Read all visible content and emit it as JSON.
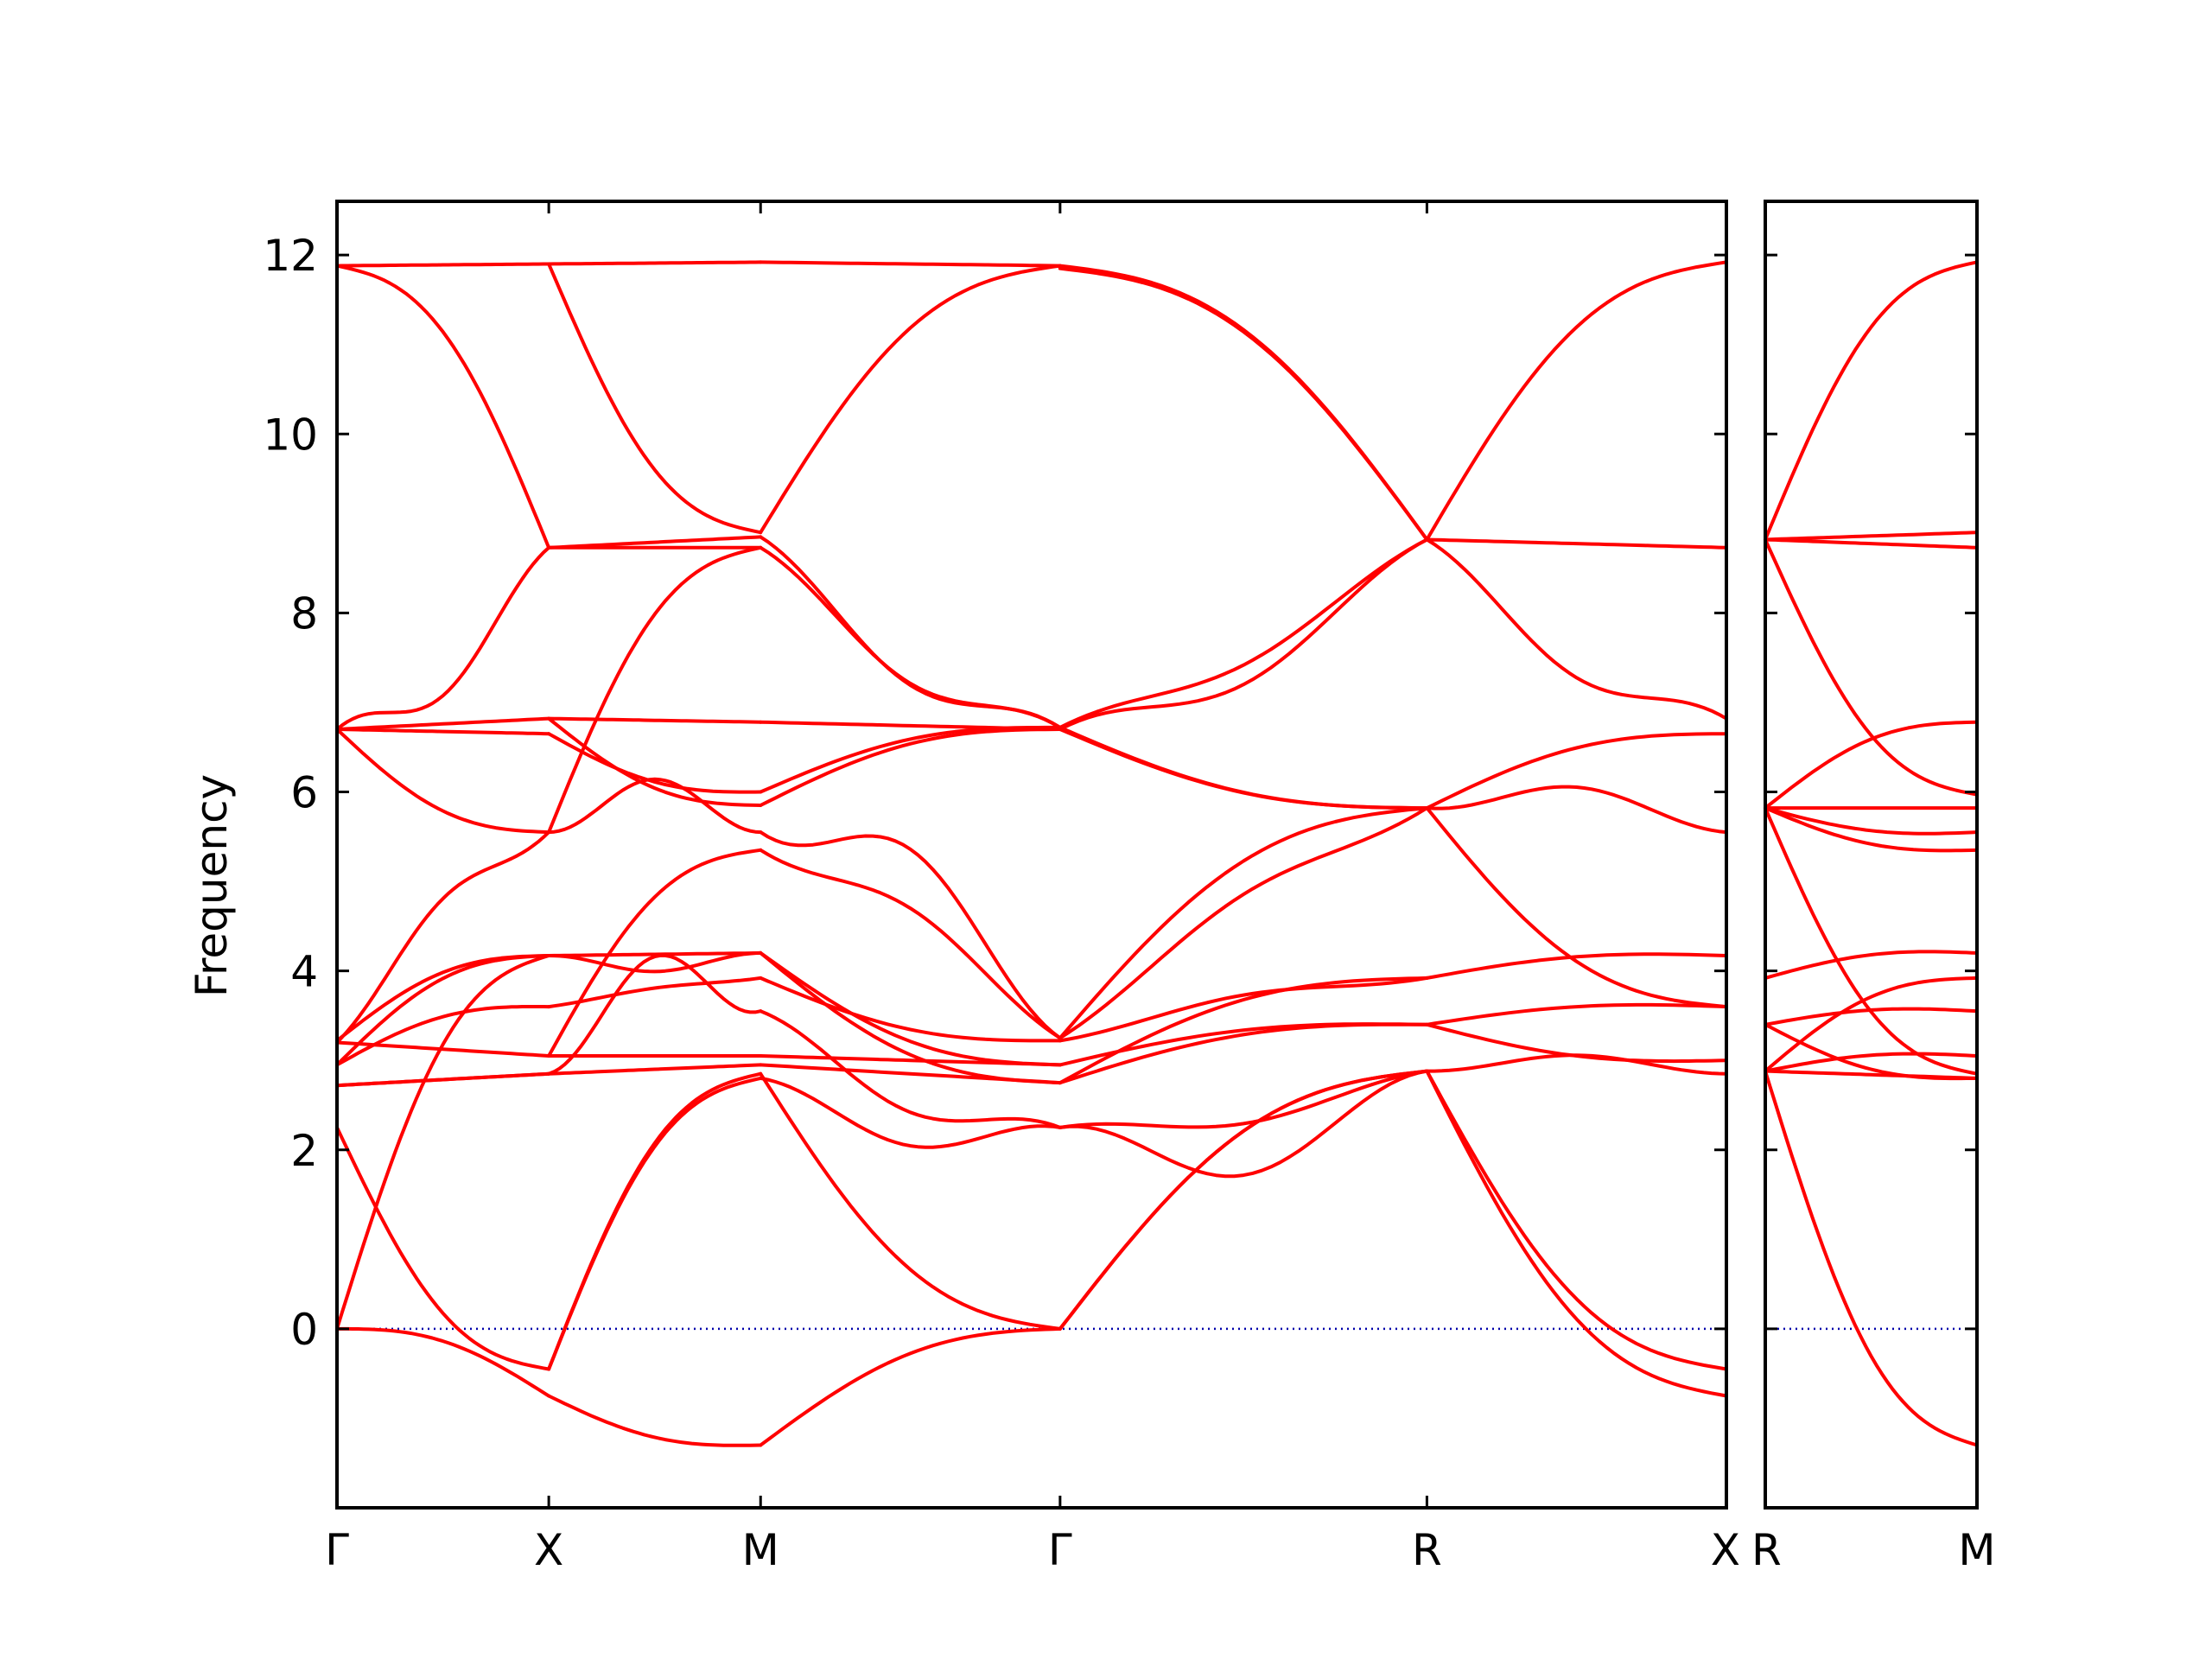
{
  "chart_data": {
    "type": "line",
    "ylabel": "Frequency",
    "ylim": [
      -2,
      12.6
    ],
    "yticks": [
      0,
      2,
      4,
      6,
      8,
      10,
      12
    ],
    "colors": {
      "bands": "#ff0000",
      "zero_line": "#0000aa",
      "frame": "#000000"
    },
    "zero_line": {
      "y": 0,
      "style": "dotted"
    },
    "panels": [
      {
        "segments": [
          {
            "from": "Γ",
            "to": "X",
            "length": 1.0
          },
          {
            "from": "X",
            "to": "M",
            "length": 1.0
          },
          {
            "from": "M",
            "to": "Γ",
            "length": 1.414
          },
          {
            "from": "Γ",
            "to": "R",
            "length": 1.732
          },
          {
            "from": "R",
            "to": "X",
            "length": 1.414
          }
        ],
        "xtick_labels": [
          "Γ",
          "X",
          "M",
          "Γ",
          "R",
          "X"
        ],
        "bands_per_segment": [
          [
            {
              "start": 11.88,
              "end": 11.9
            },
            {
              "start": 11.88,
              "end": 8.73,
              "shape": "arch"
            },
            {
              "start": 6.7,
              "end": 8.73,
              "shape": "dip",
              "min": 6.3
            },
            {
              "start": 6.7,
              "end": 6.82
            },
            {
              "start": 6.7,
              "end": 6.65
            },
            {
              "start": 6.7,
              "end": 5.55,
              "shape": "sag"
            },
            {
              "start": 3.2,
              "end": 5.55,
              "shape": "bump",
              "peak": 5.82
            },
            {
              "start": 3.22,
              "end": 4.17,
              "shape": "arch"
            },
            {
              "start": 3.2,
              "end": 3.05
            },
            {
              "start": 2.95,
              "end": 4.17,
              "shape": "arch"
            },
            {
              "start": 2.95,
              "end": 3.6,
              "shape": "arch"
            },
            {
              "start": 2.72,
              "end": 2.85
            },
            {
              "start": 2.72,
              "end": 2.85
            },
            {
              "start": 2.25,
              "end": -0.45,
              "shape": "sag"
            },
            {
              "start": 0.0,
              "end": 4.17,
              "shape": "arch"
            },
            {
              "start": 0.0,
              "end": -0.75,
              "shape": "arch"
            }
          ],
          [
            {
              "start": 11.9,
              "end": 11.92
            },
            {
              "start": 11.9,
              "end": 8.9,
              "shape": "sag"
            },
            {
              "start": 8.73,
              "end": 8.85
            },
            {
              "start": 8.73,
              "end": 8.73
            },
            {
              "start": 6.82,
              "end": 6.78
            },
            {
              "start": 6.65,
              "end": 6.0,
              "shape": "sag"
            },
            {
              "start": 6.82,
              "end": 5.85,
              "shape": "sag"
            },
            {
              "start": 5.55,
              "end": 5.55,
              "shape": "bump",
              "peak": 5.92
            },
            {
              "start": 5.55,
              "end": 8.73,
              "shape": "arch"
            },
            {
              "start": 4.17,
              "end": 4.2
            },
            {
              "start": 4.17,
              "end": 4.2,
              "shape": "dip",
              "min": 4.05
            },
            {
              "start": 3.6,
              "end": 3.92,
              "shape": "bump",
              "peak": 3.95
            },
            {
              "start": 3.05,
              "end": 5.35,
              "shape": "arch"
            },
            {
              "start": 3.05,
              "end": 3.05
            },
            {
              "start": 2.85,
              "end": 2.95
            },
            {
              "start": 2.85,
              "end": 3.55,
              "shape": "dip",
              "min": 3.45
            },
            {
              "start": -0.45,
              "end": 2.85,
              "shape": "arch"
            },
            {
              "start": -0.45,
              "end": 2.8,
              "shape": "arch"
            },
            {
              "start": -0.75,
              "end": -1.3,
              "shape": "sag"
            }
          ],
          [
            {
              "start": 11.92,
              "end": 11.88
            },
            {
              "start": 8.9,
              "end": 11.88,
              "shape": "arch"
            },
            {
              "start": 8.85,
              "end": 6.72,
              "shape": "dip",
              "min": 6.35
            },
            {
              "start": 8.73,
              "end": 6.72,
              "shape": "dip",
              "min": 6.4
            },
            {
              "start": 6.78,
              "end": 6.7
            },
            {
              "start": 6.0,
              "end": 6.72,
              "shape": "arch"
            },
            {
              "start": 5.85,
              "end": 6.7,
              "shape": "arch"
            },
            {
              "start": 5.55,
              "end": 3.25,
              "shape": "bump",
              "peak": 6.15
            },
            {
              "start": 5.35,
              "end": 3.25,
              "shape": "bump",
              "peak": 5.6
            },
            {
              "start": 4.2,
              "end": 2.75,
              "shape": "sag"
            },
            {
              "start": 4.2,
              "end": 2.95,
              "shape": "sag"
            },
            {
              "start": 3.92,
              "end": 3.22,
              "shape": "sag"
            },
            {
              "start": 3.55,
              "end": 2.25,
              "shape": "dip",
              "min": 1.95
            },
            {
              "start": 3.05,
              "end": 2.95
            },
            {
              "start": 2.95,
              "end": 2.75
            },
            {
              "start": 2.85,
              "end": 0.0,
              "shape": "sag"
            },
            {
              "start": 2.8,
              "end": 2.25,
              "shape": "dip",
              "min": 1.95
            },
            {
              "start": -1.3,
              "end": 0.0,
              "shape": "arch"
            }
          ],
          [
            {
              "start": 11.88,
              "end": 8.82,
              "shape": "arch"
            },
            {
              "start": 11.85,
              "end": 8.82,
              "shape": "arch"
            },
            {
              "start": 6.72,
              "end": 8.82,
              "shape": "dip",
              "min": 6.5
            },
            {
              "start": 6.7,
              "end": 8.82,
              "shape": "dip",
              "min": 6.35
            },
            {
              "start": 6.72,
              "end": 5.82,
              "shape": "sag"
            },
            {
              "start": 6.7,
              "end": 5.82,
              "shape": "sag"
            },
            {
              "start": 3.25,
              "end": 5.82,
              "shape": "bump",
              "peak": 6.02
            },
            {
              "start": 3.25,
              "end": 5.82,
              "shape": "arch"
            },
            {
              "start": 3.22,
              "end": 3.92,
              "shape": "bump",
              "peak": 4.02
            },
            {
              "start": 2.95,
              "end": 3.4,
              "shape": "arch"
            },
            {
              "start": 2.75,
              "end": 3.92,
              "shape": "arch"
            },
            {
              "start": 2.75,
              "end": 3.4,
              "shape": "arch"
            },
            {
              "start": 2.25,
              "end": 2.88,
              "shape": "dip",
              "min": 2.08
            },
            {
              "start": 2.25,
              "end": 2.88,
              "shape": "dip",
              "min": 1.72
            },
            {
              "start": 0.0,
              "end": 2.88,
              "shape": "arch"
            },
            {
              "start": 0.0,
              "end": 2.88,
              "shape": "arch"
            }
          ],
          [
            {
              "start": 8.82,
              "end": 8.73
            },
            {
              "start": 8.82,
              "end": 11.92,
              "shape": "arch"
            },
            {
              "start": 8.82,
              "end": 6.82,
              "shape": "dip",
              "min": 6.48
            },
            {
              "start": 5.82,
              "end": 6.65,
              "shape": "arch"
            },
            {
              "start": 5.82,
              "end": 5.55,
              "shape": "bump",
              "peak": 6.05
            },
            {
              "start": 5.82,
              "end": 3.6,
              "shape": "sag"
            },
            {
              "start": 3.92,
              "end": 4.17,
              "shape": "arch"
            },
            {
              "start": 3.4,
              "end": 3.6,
              "shape": "arch"
            },
            {
              "start": 3.4,
              "end": 3.0,
              "shape": "sag"
            },
            {
              "start": 2.88,
              "end": 2.85,
              "shape": "bump",
              "peak": 3.0
            },
            {
              "start": 2.88,
              "end": -0.45,
              "shape": "sag"
            },
            {
              "start": 2.88,
              "end": -0.75,
              "shape": "sag"
            }
          ]
        ]
      },
      {
        "segments": [
          {
            "from": "R",
            "to": "M",
            "length": 0.707
          }
        ],
        "xtick_labels": [
          "R",
          "M"
        ],
        "bands_per_segment": [
          [
            {
              "start": 8.82,
              "end": 11.92,
              "shape": "arch"
            },
            {
              "start": 8.82,
              "end": 8.9
            },
            {
              "start": 8.82,
              "end": 8.73
            },
            {
              "start": 8.82,
              "end": 5.97,
              "shape": "sag"
            },
            {
              "start": 5.82,
              "end": 6.78,
              "shape": "arch"
            },
            {
              "start": 5.82,
              "end": 5.82
            },
            {
              "start": 5.82,
              "end": 5.55,
              "shape": "sag"
            },
            {
              "start": 5.82,
              "end": 5.35,
              "shape": "sag"
            },
            {
              "start": 5.82,
              "end": 2.85,
              "shape": "sag"
            },
            {
              "start": 3.92,
              "end": 4.2,
              "shape": "arch"
            },
            {
              "start": 3.4,
              "end": 3.55,
              "shape": "arch"
            },
            {
              "start": 3.4,
              "end": 2.8,
              "shape": "sag"
            },
            {
              "start": 2.88,
              "end": 3.92,
              "shape": "arch"
            },
            {
              "start": 2.88,
              "end": 3.05,
              "shape": "arch"
            },
            {
              "start": 2.88,
              "end": 2.8
            },
            {
              "start": 2.88,
              "end": -1.3,
              "shape": "sag"
            }
          ]
        ]
      }
    ]
  }
}
